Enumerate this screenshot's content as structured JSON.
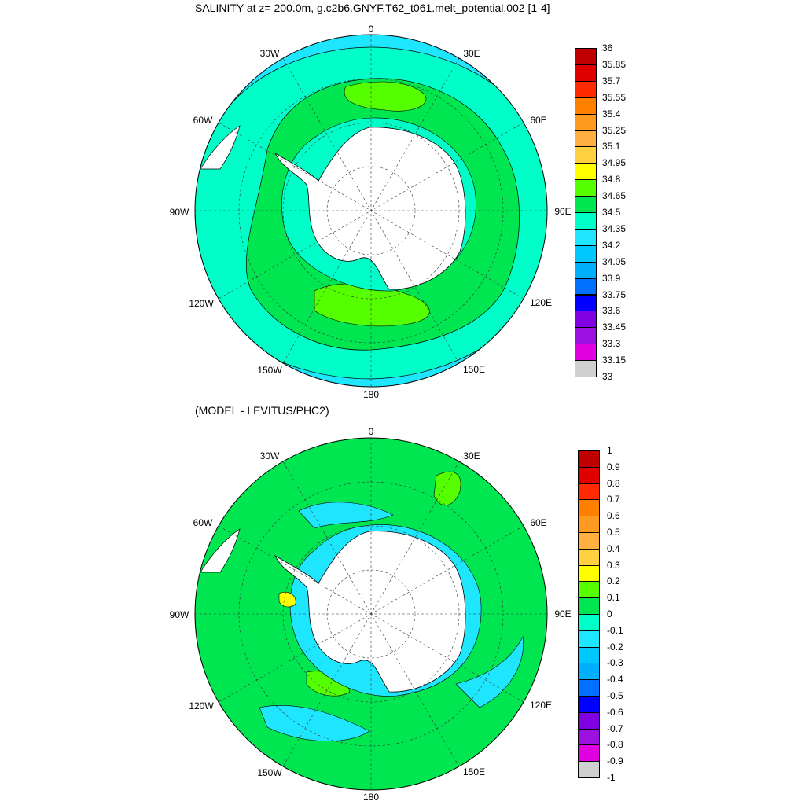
{
  "top_panel": {
    "title": "SALINITY at z= 200.0m, g.c2b6.GNYF.T62_t061.melt_potential.002 [1-4]",
    "lon_labels": [
      "0",
      "30E",
      "60E",
      "90E",
      "120E",
      "150E",
      "180",
      "150W",
      "120W",
      "90W",
      "60W",
      "30W"
    ],
    "colorbar": {
      "labels": [
        "36",
        "35.85",
        "35.7",
        "35.55",
        "35.4",
        "35.25",
        "35.1",
        "34.95",
        "34.8",
        "34.65",
        "34.5",
        "34.35",
        "34.2",
        "34.05",
        "33.9",
        "33.75",
        "33.6",
        "33.45",
        "33.3",
        "33.15",
        "33"
      ],
      "colors": [
        "#c00000",
        "#e00000",
        "#ff2a00",
        "#ff8000",
        "#ff9a20",
        "#ffb040",
        "#ffd040",
        "#ffff00",
        "#55ff00",
        "#00e650",
        "#00ffc8",
        "#1ee6ff",
        "#00c8ff",
        "#00b0ff",
        "#0070ff",
        "#0000ff",
        "#7f00e0",
        "#9c10e0",
        "#e000e0",
        "#d0d0d0",
        "#707070"
      ]
    }
  },
  "bottom_panel": {
    "title": "(MODEL - LEVITUS/PHC2)",
    "lon_labels": [
      "0",
      "30E",
      "60E",
      "90E",
      "120E",
      "150E",
      "180",
      "150W",
      "120W",
      "90W",
      "60W",
      "30W"
    ],
    "colorbar": {
      "labels": [
        "1",
        "0.9",
        "0.8",
        "0.7",
        "0.6",
        "0.5",
        "0.4",
        "0.3",
        "0.2",
        "0.1",
        "0",
        "-0.1",
        "-0.2",
        "-0.3",
        "-0.4",
        "-0.5",
        "-0.6",
        "-0.7",
        "-0.8",
        "-0.9",
        "-1"
      ],
      "colors": [
        "#c00000",
        "#e00000",
        "#ff2a00",
        "#ff8000",
        "#ff9a20",
        "#ffb040",
        "#ffd040",
        "#ffff00",
        "#55ff00",
        "#00e650",
        "#00ffc8",
        "#1ee6ff",
        "#00c8ff",
        "#00b0ff",
        "#0070ff",
        "#0000ff",
        "#7f00e0",
        "#9c10e0",
        "#e000e0",
        "#d0d0d0",
        "#707070"
      ]
    }
  },
  "colors": {
    "land": "#ffffff",
    "top_ocean_base": "#1ee6ff",
    "top_ring": "#00ffc8",
    "top_core": "#00e650",
    "top_patch": "#55ff00",
    "bottom_ocean_base": "#00e650",
    "bottom_anom_neg": "#1ee6ff",
    "bottom_anom_pos": "#55ff00"
  }
}
